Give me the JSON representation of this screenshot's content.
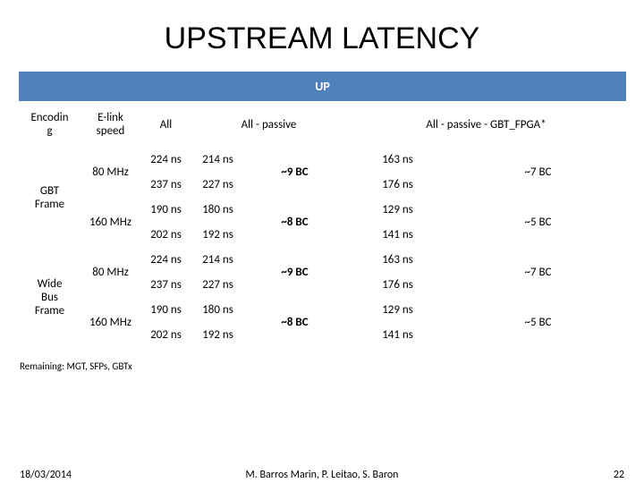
{
  "title": "UPSTREAM LATENCY",
  "header_up": "UP",
  "cols": {
    "encoding": "Encodin\ng",
    "elink": "E-link\nspeed",
    "all": "All",
    "all_passive": "All - passive",
    "all_passive_gbt": "All - passive - GBT_FPGA*"
  },
  "encodings": [
    "GBT\nFrame",
    "Wide\nBus\nFrame"
  ],
  "speeds": [
    "80 MHz",
    "160 MHz",
    "80 MHz",
    "160 MHz"
  ],
  "all_cells": [
    "224 ns",
    "237 ns",
    "190 ns",
    "202 ns",
    "224 ns",
    "237 ns",
    "190 ns",
    "202 ns"
  ],
  "passive_left": [
    "214 ns",
    "227 ns",
    "180 ns",
    "192 ns",
    "214 ns",
    "227 ns",
    "180 ns",
    "192 ns"
  ],
  "passive_right": [
    "~9 BC",
    "~8 BC",
    "~9 BC",
    "~8 BC"
  ],
  "gbt_left": [
    "163 ns",
    "176 ns",
    "129 ns",
    "141 ns",
    "163 ns",
    "176 ns",
    "129 ns",
    "141 ns"
  ],
  "gbt_right": [
    "~7 BC",
    "~5 BC",
    "~7 BC",
    "~5 BC"
  ],
  "remaining": "Remaining: MGT, SFPs, GBTx",
  "footer": {
    "date": "18/03/2014",
    "authors": "M. Barros Marin, P. Leitao, S. Baron",
    "page": "22"
  }
}
